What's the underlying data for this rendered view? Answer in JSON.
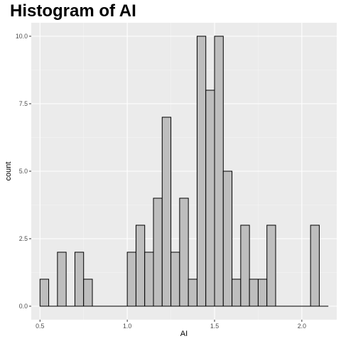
{
  "chart_data": {
    "type": "bar",
    "subtype": "histogram",
    "title": "Histogram of AI",
    "xlabel": "AI",
    "ylabel": "count",
    "xlim": [
      0.45,
      2.2
    ],
    "ylim": [
      -0.5,
      10.5
    ],
    "x_ticks": [
      0.5,
      1.0,
      1.5,
      2.0
    ],
    "x_tick_labels": [
      "0.5",
      "1.0",
      "1.5",
      "2.0"
    ],
    "y_ticks": [
      0,
      2.5,
      5,
      7.5,
      10
    ],
    "y_tick_labels": [
      "0.0",
      "2.5",
      "5.0",
      "7.5",
      "10.0"
    ],
    "bin_width": 0.05,
    "bin_centers": [
      0.525,
      0.575,
      0.625,
      0.675,
      0.725,
      0.775,
      0.825,
      0.875,
      0.925,
      0.975,
      1.025,
      1.075,
      1.125,
      1.175,
      1.225,
      1.275,
      1.325,
      1.375,
      1.425,
      1.475,
      1.525,
      1.575,
      1.625,
      1.675,
      1.725,
      1.775,
      1.825,
      1.875,
      1.925,
      1.975,
      2.025,
      2.075,
      2.125
    ],
    "counts": [
      1,
      0,
      2,
      0,
      2,
      1,
      0,
      0,
      0,
      0,
      2,
      3,
      2,
      4,
      7,
      2,
      4,
      1,
      10,
      8,
      10,
      5,
      1,
      3,
      1,
      1,
      3,
      0,
      0,
      0,
      0,
      3,
      0
    ],
    "grid": true,
    "legend": "none",
    "colors": {
      "panel_background": "#ebebeb",
      "grid_major": "#ffffff",
      "bar_fill": "#bebebe",
      "bar_outline": "#000000",
      "tick_text": "#4d4d4d",
      "tick_mark": "#333333"
    }
  }
}
